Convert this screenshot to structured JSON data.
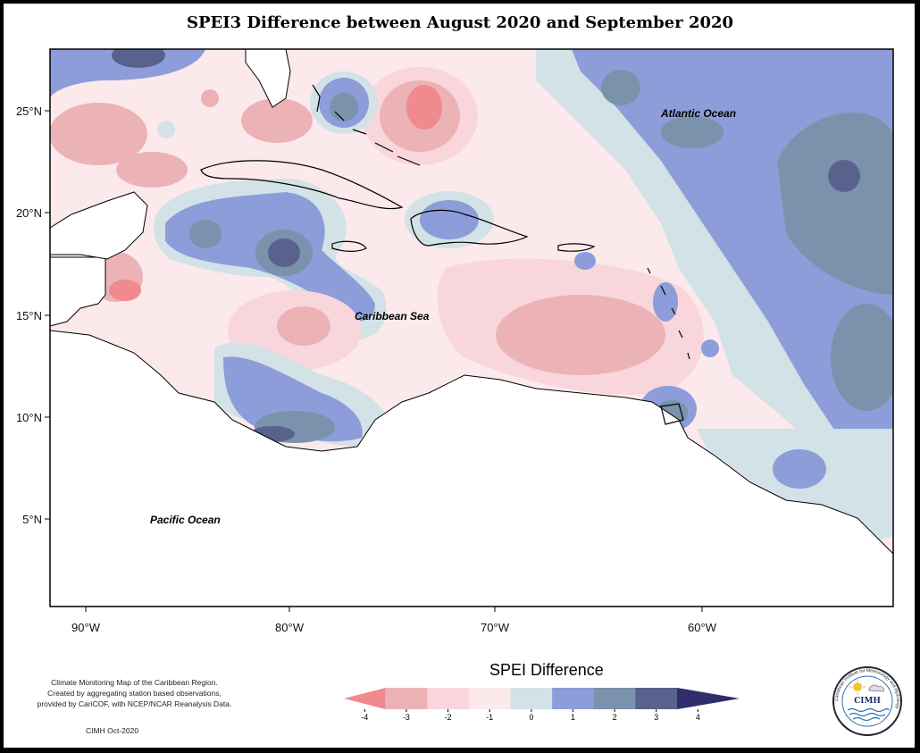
{
  "title": "SPEI3 Difference between August 2020 and September 2020",
  "axes": {
    "x_ticks": [
      "90°W",
      "80°W",
      "70°W",
      "60°W"
    ],
    "y_ticks": [
      "25°N",
      "20°N",
      "15°N",
      "10°N",
      "5°N"
    ]
  },
  "regions": {
    "atlantic": "Atlantic Ocean",
    "caribbean": "Caribbean Sea",
    "pacific": "Pacific Ocean"
  },
  "legend": {
    "title": "SPEI Difference",
    "ticks": [
      "-4",
      "-3",
      "-2",
      "-1",
      "0",
      "1",
      "2",
      "3",
      "4"
    ],
    "colors": [
      "#f08a8e",
      "#ebb3b6",
      "#f8d6dc",
      "#fbe9ec",
      "#d2e2e7",
      "#8c9dd9",
      "#7a92ab",
      "#59628c",
      "#2f2e6b"
    ]
  },
  "footnote": {
    "line1": "Climate Monitoring Map of the Caribbean Region.",
    "line2": "Created by aggregating station based observations,",
    "line3": "provided by CariCOF, with NCEP/NCAR Reanalysis Data."
  },
  "credit": "CIMH Oct-2020",
  "logo": {
    "name": "CIMH",
    "ring_text": "Caribbean Institute for Meteorology and Hydrology"
  }
}
